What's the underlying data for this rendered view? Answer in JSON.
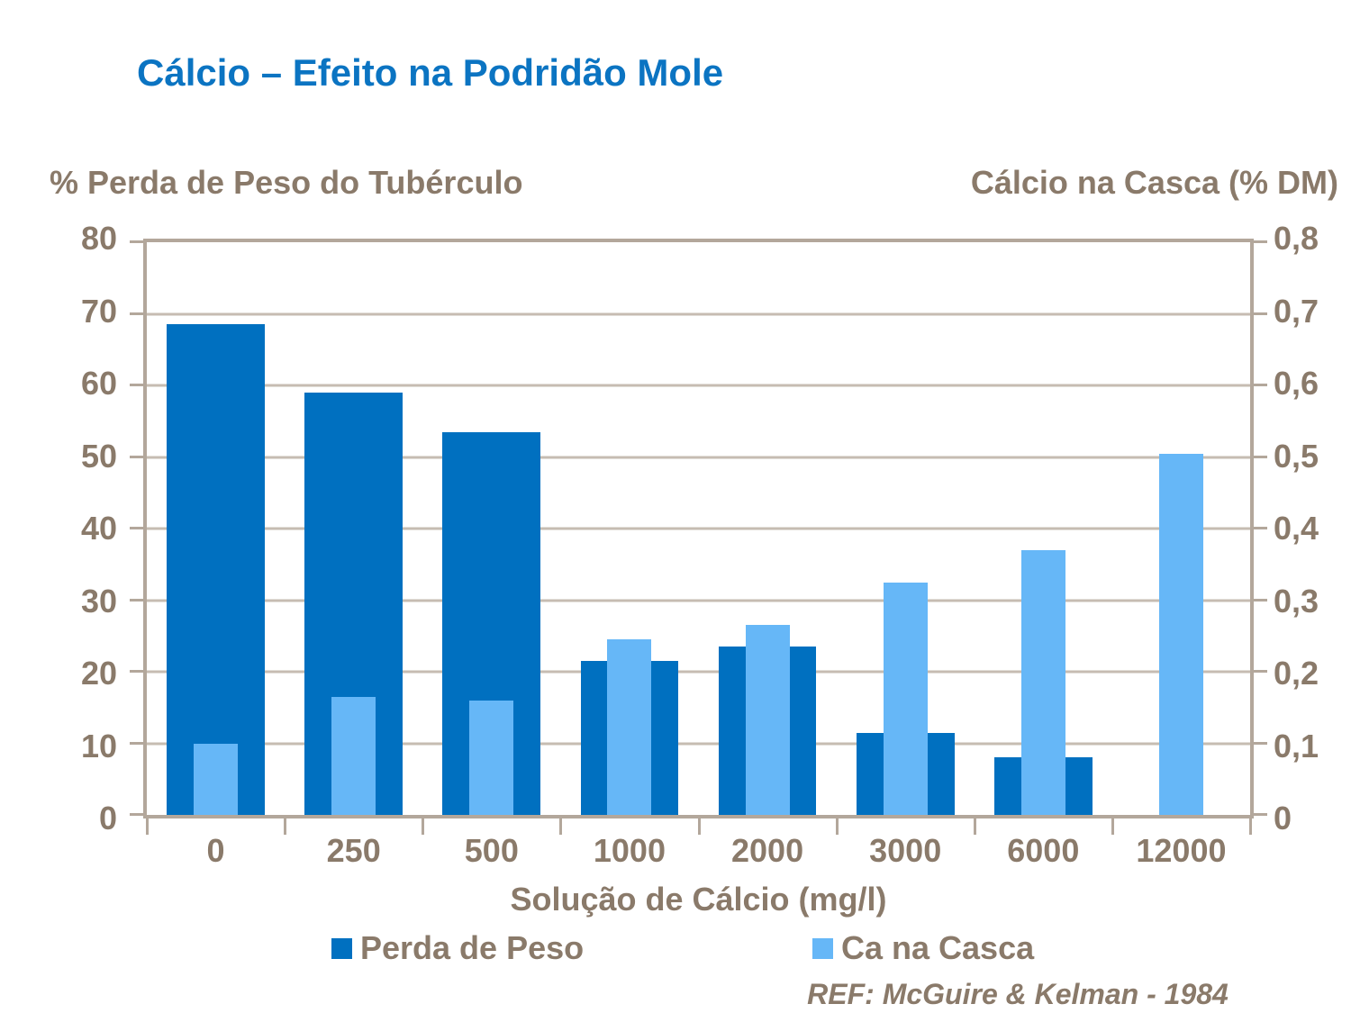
{
  "chart_data": {
    "type": "bar",
    "title": "Cálcio – Efeito na Podridão Mole",
    "categories": [
      "0",
      "250",
      "500",
      "1000",
      "2000",
      "3000",
      "6000",
      "12000"
    ],
    "x_axis_title": "Solução de Cálcio (mg/l)",
    "left_axis": {
      "title": "% Perda de Peso do Tubérculo",
      "min": 0,
      "max": 80,
      "ticks": [
        "0",
        "10",
        "20",
        "30",
        "40",
        "50",
        "60",
        "70",
        "80"
      ]
    },
    "right_axis": {
      "title": "Cálcio na Casca  (% DM)",
      "min": 0,
      "max": 0.8,
      "ticks": [
        "0",
        "0,1",
        "0,2",
        "0,3",
        "0,4",
        "0,5",
        "0,6",
        "0,7",
        "0,8"
      ]
    },
    "series": [
      {
        "name": "Perda de Peso",
        "axis": "left",
        "color": "#0070C0",
        "values": [
          68.5,
          59,
          53.5,
          21.5,
          23.5,
          11.5,
          8,
          0
        ]
      },
      {
        "name": "Ca na Casca",
        "axis": "right",
        "color": "#66B7F7",
        "values": [
          0.1,
          0.165,
          0.16,
          0.245,
          0.265,
          0.325,
          0.37,
          0.505
        ]
      }
    ],
    "grid": true,
    "legend_position": "bottom",
    "annotation": "REF: McGuire & Kelman - 1984"
  },
  "colors": {
    "background": "#FFFFFF",
    "title": "#0B74C2",
    "text": "#8A7A6A",
    "axis_line": "#B3A79B",
    "gridline": "#C6BCB2",
    "dark_bar": "#0070C0",
    "light_bar": "#66B7F7"
  }
}
